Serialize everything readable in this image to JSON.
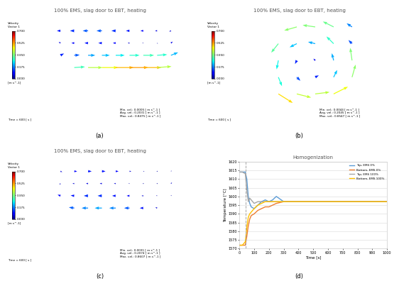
{
  "chart_data": [
    {
      "type": "vector",
      "title": "100% EMS, slag door to EBT, heating",
      "caption": "(a)",
      "tick_labels": false,
      "colorbar_title": [
        "Velocity",
        "Vector 1"
      ],
      "colorbar_unit": "[m s^-1]",
      "colorbar_range": [
        0,
        0.7
      ],
      "colorbar_ticks": [
        {
          "value": 0.7,
          "label": "0.700"
        },
        {
          "value": 0.525,
          "label": "0.525"
        },
        {
          "value": 0.35,
          "label": "0.350"
        },
        {
          "value": 0.175,
          "label": "0.175"
        },
        {
          "value": 0,
          "label": "0.000"
        }
      ],
      "stats": [
        "Min. vel.: 0.0005 [ m s^-1 ]",
        "Avg. vel.: 0.2031 [ m s^-1 ]",
        "Max. vel.: 0.8475 [ m s^-1 ]"
      ],
      "time_label": "Time = 600 [ s ]",
      "x": [
        -0.9,
        -0.675,
        -0.45,
        -0.225,
        0,
        0.225,
        0.45,
        0.675,
        0.9
      ],
      "y": [
        0.06,
        0.0,
        -0.06,
        -0.12
      ],
      "u": [
        [
          -0.1,
          -0.12,
          -0.15,
          -0.15,
          -0.12,
          -0.1,
          -0.08,
          -0.06,
          -0.05
        ],
        [
          -0.05,
          -0.08,
          -0.1,
          -0.1,
          -0.08,
          -0.05,
          -0.03,
          0.02,
          0.05
        ],
        [
          0.1,
          0.15,
          0.2,
          0.22,
          0.25,
          0.28,
          0.3,
          0.28,
          0.2
        ],
        [
          null,
          0.3,
          0.4,
          0.45,
          0.5,
          0.52,
          0.5,
          0.4,
          null
        ]
      ],
      "v": [
        [
          0,
          0,
          0,
          0,
          0,
          0,
          0,
          0,
          -0.02
        ],
        [
          0.03,
          0,
          0,
          0,
          0,
          0,
          0,
          -0.02,
          0.04
        ],
        [
          0.05,
          0.01,
          0,
          0,
          0,
          0,
          0,
          0.02,
          0.08
        ],
        [
          null,
          0.02,
          0,
          0,
          0,
          0,
          0,
          0.03,
          null
        ]
      ]
    },
    {
      "type": "vector",
      "title": "100% EMS, slag door to EBT, heating",
      "caption": "(b)",
      "tick_labels": false,
      "colorbar_title": [
        "Velocity",
        "Vector 1"
      ],
      "colorbar_unit": "[m s^-1]",
      "colorbar_range": [
        0,
        0.7
      ],
      "colorbar_ticks": [
        {
          "value": 0.7,
          "label": "0.700"
        },
        {
          "value": 0.525,
          "label": "0.525"
        },
        {
          "value": 0.35,
          "label": "0.350"
        },
        {
          "value": 0.175,
          "label": "0.175"
        },
        {
          "value": 0,
          "label": "0.000"
        }
      ],
      "stats": [
        "Min. vel.: 0.0044 [ m s^-1 ]",
        "Avg. vel.: 0.2045 [ m s^-1 ]",
        "Max. vel.: 0.8547 [ m s^-1 ]"
      ],
      "time_label": "Time = 600 [ s ]",
      "x": [
        -0.9,
        -0.6,
        -0.3,
        0,
        0.3,
        0.6,
        0.9
      ],
      "y": [
        0.6,
        0.3,
        0,
        -0.3,
        -0.6
      ],
      "u": [
        [
          null,
          null,
          -0.35,
          -0.35,
          -0.3,
          -0.15,
          null
        ],
        [
          null,
          -0.2,
          -0.2,
          -0.2,
          -0.2,
          -0.1,
          null
        ],
        [
          null,
          -0.05,
          -0.05,
          -0.05,
          -0.05,
          -0.05,
          null
        ],
        [
          null,
          0.1,
          0.1,
          0.1,
          0.1,
          0.1,
          null
        ],
        [
          null,
          0.4,
          0.4,
          0.4,
          0.4,
          null,
          null
        ]
      ],
      "v": [
        [
          null,
          null,
          -0.1,
          0.05,
          0.15,
          0.1,
          null
        ],
        [
          null,
          -0.25,
          -0.1,
          0.05,
          0.2,
          0.1,
          null
        ],
        [
          null,
          -0.25,
          -0.1,
          0.05,
          0.2,
          0.35,
          null
        ],
        [
          null,
          -0.25,
          -0.1,
          0.05,
          0.2,
          0.35,
          null
        ],
        [
          null,
          -0.25,
          -0.1,
          0.05,
          0.2,
          null,
          null
        ]
      ]
    },
    {
      "type": "vector",
      "title": "100% EMS, slag door to EBT, heating",
      "caption": "(c)",
      "tick_labels": false,
      "colorbar_title": [
        "Velocity",
        "Vector 1"
      ],
      "colorbar_unit": "[m s^-1]",
      "colorbar_range": [
        0,
        0.7
      ],
      "colorbar_ticks": [
        {
          "value": 0.7,
          "label": "0.700"
        },
        {
          "value": 0.525,
          "label": "0.525"
        },
        {
          "value": 0.35,
          "label": "0.350"
        },
        {
          "value": 0.175,
          "label": "0.175"
        },
        {
          "value": 0,
          "label": "0.000"
        }
      ],
      "stats": [
        "Min. vel.: 0.0031 [ m s^-1 ]",
        "Avg. vel.: 0.2074 [ m s^-1 ]",
        "Max. vel.: 0.8607 [ m s^-1 ]"
      ],
      "time_label": "Time = 600 [ s ]",
      "x": [
        -0.9,
        -0.675,
        -0.45,
        -0.225,
        0,
        0.225,
        0.45,
        0.675,
        0.9
      ],
      "y": [
        0.06,
        0.0,
        -0.06,
        -0.12
      ],
      "u": [
        [
          0.05,
          0.08,
          0.1,
          0.1,
          0.08,
          0.05,
          0.03,
          0.02,
          0.02
        ],
        [
          -0.03,
          -0.05,
          -0.06,
          -0.06,
          -0.05,
          -0.03,
          -0.02,
          0.01,
          0.03
        ],
        [
          -0.08,
          -0.1,
          -0.12,
          -0.12,
          -0.1,
          -0.08,
          -0.05,
          -0.03,
          0.02
        ],
        [
          null,
          -0.15,
          -0.18,
          -0.2,
          -0.18,
          -0.15,
          -0.1,
          -0.05,
          null
        ]
      ],
      "v": [
        [
          -0.02,
          0,
          0,
          0,
          0,
          0,
          0,
          0.01,
          0.02
        ],
        [
          -0.03,
          0,
          0,
          0,
          0,
          0,
          0,
          0.01,
          0.03
        ],
        [
          0.03,
          0.01,
          0,
          0,
          0,
          0,
          0,
          0.01,
          0.02
        ],
        [
          null,
          0.02,
          0,
          0,
          0,
          0,
          0,
          0.02,
          null
        ]
      ]
    },
    {
      "type": "line",
      "title": "Homogenization",
      "caption": "(d)",
      "x_label": "Time [s]",
      "y_label": "Temperature [°C]",
      "x": [
        0,
        20,
        40,
        50,
        60,
        70,
        80,
        100,
        125,
        150,
        175,
        200,
        225,
        250,
        275,
        300,
        350,
        400,
        500,
        600,
        700,
        800,
        900,
        1000
      ],
      "xlim": [
        0,
        1000
      ],
      "xticks": [
        0,
        100,
        200,
        300,
        400,
        500,
        600,
        700,
        800,
        900,
        1000
      ],
      "ylim": [
        1570,
        1620
      ],
      "yticks": [
        1570,
        1575,
        1580,
        1585,
        1590,
        1595,
        1600,
        1605,
        1610,
        1615,
        1620
      ],
      "grid": true,
      "legend": "upper right",
      "vline": {
        "x": 40,
        "color": "#a5a5a5",
        "line_style": "dashed"
      },
      "series": [
        {
          "name": "Top, EMS 0%",
          "color": "#5b9bd5",
          "line_style": "solid",
          "values": [
            1614,
            1614,
            1614,
            1610,
            1600,
            1596,
            1594,
            1593,
            1595,
            1597,
            1598,
            1597,
            1598,
            1600,
            1598.5,
            1597,
            1597,
            1597,
            1597,
            1597,
            1597,
            1597,
            1597,
            1597
          ]
        },
        {
          "name": "Bottom, EMS 0%",
          "color": "#ed7d31",
          "line_style": "solid",
          "values": [
            1572,
            1572,
            1572,
            1577,
            1583,
            1587,
            1589,
            1590,
            1592,
            1593,
            1594,
            1594,
            1595,
            1596,
            1596.5,
            1597,
            1597,
            1597,
            1597,
            1597,
            1597,
            1597,
            1597,
            1597
          ]
        },
        {
          "name": "Top, EMS 100%",
          "color": "#a5a5a5",
          "line_style": "solid",
          "values": [
            1614,
            1614,
            1613,
            1604,
            1597,
            1599,
            1598,
            1596,
            1597,
            1597,
            1597,
            1597,
            1597,
            1597,
            1597,
            1597,
            1597,
            1597,
            1597,
            1597,
            1597,
            1597,
            1597,
            1597
          ]
        },
        {
          "name": "Bottom, EMS 100%",
          "color": "#ffc000",
          "line_style": "solid",
          "values": [
            1572,
            1572,
            1574,
            1582,
            1588,
            1590,
            1591,
            1593,
            1595,
            1596,
            1597,
            1597,
            1597,
            1597,
            1597,
            1597,
            1597,
            1597,
            1597,
            1597,
            1597,
            1597,
            1597,
            1597
          ]
        }
      ]
    }
  ]
}
